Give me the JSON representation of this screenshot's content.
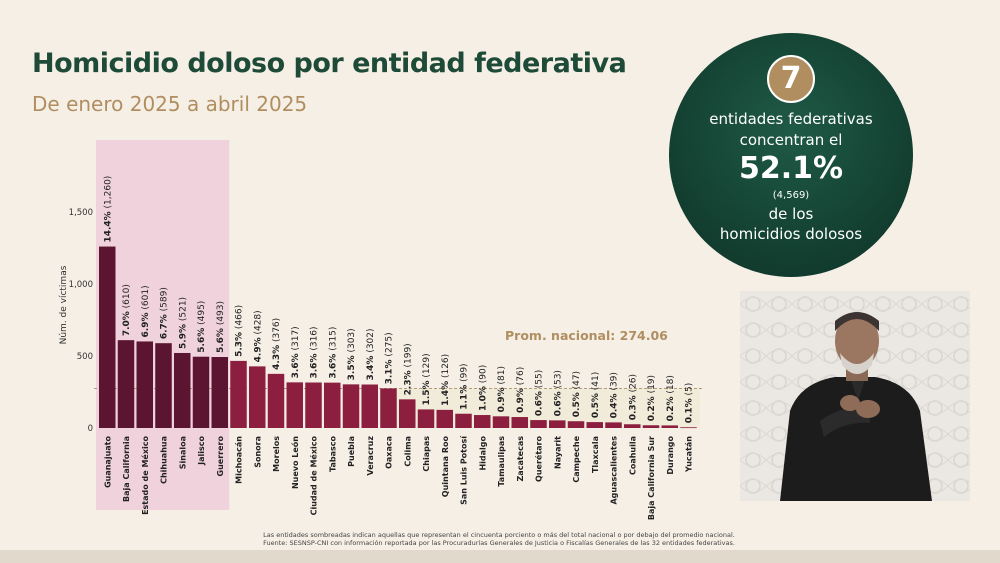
{
  "header": {
    "title": "Homicidio doloso por entidad federativa",
    "subtitle": "De enero 2025 a abril 2025"
  },
  "summary": {
    "count": "7",
    "line1": "entidades federativas",
    "line2": "concentran el",
    "percent": "52.1%",
    "total": "(4,569)",
    "line3": "de los",
    "line4": "homicidios dolosos"
  },
  "chart_data": {
    "type": "bar",
    "ylabel": "Núm. de víctimas",
    "ylim": [
      0,
      1500
    ],
    "yticks": [
      "0",
      "500",
      "1,000",
      "1,500"
    ],
    "average_label": "Prom. nacional: 274.06",
    "average_value": 274.06,
    "highlight_count": 7,
    "colors": {
      "highlight_bar": "#5c1530",
      "other_bar": "#8c1f3f",
      "highlight_band": "#efd2dc",
      "average_band": "#f1ebda",
      "average_line": "#b49a7a"
    },
    "categories": [
      "Guanajuato",
      "Baja California",
      "Estado de México",
      "Chihuahua",
      "Sinaloa",
      "Jalisco",
      "Guerrero",
      "Michoacán",
      "Sonora",
      "Morelos",
      "Nuevo León",
      "Ciudad de México",
      "Tabasco",
      "Puebla",
      "Veracruz",
      "Oaxaca",
      "Colima",
      "Chiapas",
      "Quintana Roo",
      "San Luis Potosí",
      "Hidalgo",
      "Tamaulipas",
      "Zacatecas",
      "Querétaro",
      "Nayarit",
      "Campeche",
      "Tlaxcala",
      "Aguascalientes",
      "Coahuila",
      "Baja California Sur",
      "Durango",
      "Yucatán"
    ],
    "values": [
      1260,
      610,
      601,
      589,
      521,
      495,
      493,
      466,
      428,
      376,
      317,
      316,
      315,
      303,
      302,
      275,
      199,
      129,
      126,
      99,
      90,
      81,
      76,
      55,
      53,
      47,
      41,
      39,
      26,
      19,
      18,
      5
    ],
    "percents": [
      "14.4%",
      "7.0%",
      "6.9%",
      "6.7%",
      "5.9%",
      "5.6%",
      "5.6%",
      "5.3%",
      "4.9%",
      "4.3%",
      "3.6%",
      "3.6%",
      "3.6%",
      "3.5%",
      "3.4%",
      "3.1%",
      "2.3%",
      "1.5%",
      "1.4%",
      "1.1%",
      "1.0%",
      "0.9%",
      "0.9%",
      "0.6%",
      "0.6%",
      "0.5%",
      "0.5%",
      "0.4%",
      "0.3%",
      "0.2%",
      "0.2%",
      "0.1%"
    ],
    "counts": [
      "(1,260)",
      "(610)",
      "(601)",
      "(589)",
      "(521)",
      "(495)",
      "(493)",
      "(466)",
      "(428)",
      "(376)",
      "(317)",
      "(316)",
      "(315)",
      "(303)",
      "(302)",
      "(275)",
      "(199)",
      "(129)",
      "(126)",
      "(99)",
      "(90)",
      "(81)",
      "(76)",
      "(55)",
      "(53)",
      "(47)",
      "(41)",
      "(39)",
      "(26)",
      "(19)",
      "(18)",
      "(5)"
    ]
  },
  "footnotes": {
    "note": "Las entidades sombreadas indican aquellas que representan el cincuenta porciento o más del total nacional o por debajo del promedio nacional.",
    "source": "Fuente: SESNSP-CNI con información reportada por las Procuradurías Generales de Justicia o Fiscalías Generales de las 32 entidades federativas."
  },
  "interpreter": {
    "icon": "sign-language-interpreter"
  }
}
